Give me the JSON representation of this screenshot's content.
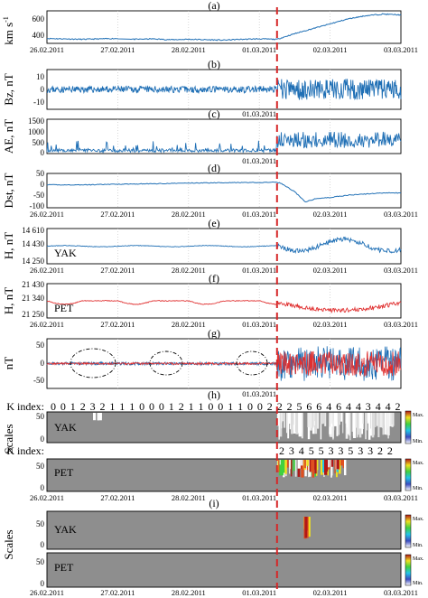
{
  "x_ticks": [
    "26.02.2011",
    "27.02.2011",
    "28.02.2011",
    "01.03.2011",
    "02.03.2011",
    "03.03.2011"
  ],
  "colors": {
    "blue": "#1f6fb5",
    "red": "#e03030",
    "dashed": "#d62728",
    "grey": "#8e8e8e",
    "gridline": "#c8c8c8"
  },
  "chart_data": [
    {
      "type": "line",
      "label": "(a)",
      "ylabel": "km s",
      "ylabel_sup": "-1",
      "yticks": [
        "400",
        "600"
      ],
      "ylim": [
        300,
        700
      ],
      "series": [
        {
          "color": "blue",
          "x": [
            0,
            0.05,
            0.1,
            0.15,
            0.2,
            0.25,
            0.3,
            0.35,
            0.4,
            0.45,
            0.5,
            0.55,
            0.6,
            0.65,
            0.7,
            0.75,
            0.8,
            0.85,
            0.9,
            0.95,
            1
          ],
          "values": [
            360,
            355,
            350,
            355,
            360,
            350,
            355,
            345,
            350,
            345,
            340,
            350,
            355,
            350,
            420,
            480,
            540,
            600,
            640,
            660,
            650
          ]
        }
      ]
    },
    {
      "type": "line",
      "label": "(b)",
      "ylabel": "Bz, nT",
      "yticks": [
        "10",
        "0",
        "-10"
      ],
      "ylim": [
        -15,
        15
      ],
      "series": [
        {
          "color": "blue"
        }
      ]
    },
    {
      "type": "line",
      "label": "(c)",
      "ylabel": "AE, nT",
      "yticks": [
        "1500",
        "1000",
        "500",
        "0"
      ],
      "ylim": [
        0,
        1500
      ],
      "series": [
        {
          "color": "blue"
        }
      ]
    },
    {
      "type": "line",
      "label": "(d)",
      "ylabel": "Dst, nT",
      "yticks": [
        "50",
        "0",
        "-50",
        "-100"
      ],
      "ylim": [
        -100,
        50
      ],
      "series": [
        {
          "color": "blue",
          "x": [
            0,
            0.1,
            0.2,
            0.3,
            0.4,
            0.5,
            0.6,
            0.64,
            0.66,
            0.7,
            0.73,
            0.76,
            0.8,
            0.85,
            0.9,
            0.95,
            1
          ],
          "values": [
            0,
            0,
            3,
            5,
            8,
            10,
            10,
            12,
            8,
            -30,
            -75,
            -60,
            -55,
            -45,
            -40,
            -35,
            -35
          ]
        }
      ]
    },
    {
      "type": "line",
      "label": "(e)",
      "ylabel": "H, nT",
      "yticks": [
        "14 610",
        "14 430",
        "14 250"
      ],
      "ylim": [
        14250,
        14610
      ],
      "station": "YAK",
      "series": [
        {
          "color": "blue"
        }
      ]
    },
    {
      "type": "line",
      "label": "(f)",
      "ylabel": "H, nT",
      "yticks": [
        "21 430",
        "21 340",
        "21 250"
      ],
      "ylim": [
        21250,
        21430
      ],
      "station": "PET",
      "series": [
        {
          "color": "red"
        }
      ]
    },
    {
      "type": "line",
      "label": "(g)",
      "ylabel": "nT",
      "yticks": [
        "50",
        "0",
        "-50"
      ],
      "ylim": [
        -50,
        50
      ],
      "series": [
        {
          "color": "blue"
        },
        {
          "color": "red"
        }
      ]
    },
    {
      "type": "heatmap",
      "label": "(h)",
      "ylabel": "Scales",
      "panels": [
        {
          "station": "YAK",
          "k_label": "K index:",
          "k_values": [
            "0",
            "0",
            "1",
            "2",
            "3",
            "2",
            "1",
            "1",
            "1",
            "0",
            "0",
            "0",
            "1",
            "2",
            "1",
            "1",
            "0",
            "0",
            "1",
            "1",
            "0",
            "0",
            "2",
            "2",
            "2",
            "5",
            "6",
            "6",
            "4",
            "6",
            "4",
            "4",
            "3",
            "4",
            "4",
            "2"
          ],
          "yticks": [
            "50",
            "0"
          ]
        },
        {
          "station": "PET",
          "k_label": "K index:",
          "k_values": [
            "2",
            "3",
            "4",
            "5",
            "5",
            "3",
            "3",
            "5",
            "3",
            "3",
            "2",
            "2"
          ],
          "yticks": [
            "50",
            "0"
          ]
        }
      ],
      "colorbar": {
        "max": "Max.",
        "min": "Min."
      }
    },
    {
      "type": "heatmap",
      "label": "(i)",
      "ylabel": "Scales",
      "panels": [
        {
          "station": "YAK",
          "yticks": [
            "50",
            "0"
          ]
        },
        {
          "station": "PET",
          "yticks": [
            "50",
            "0"
          ]
        }
      ],
      "colorbar": {
        "max": "Max.",
        "min": "Min."
      }
    }
  ]
}
